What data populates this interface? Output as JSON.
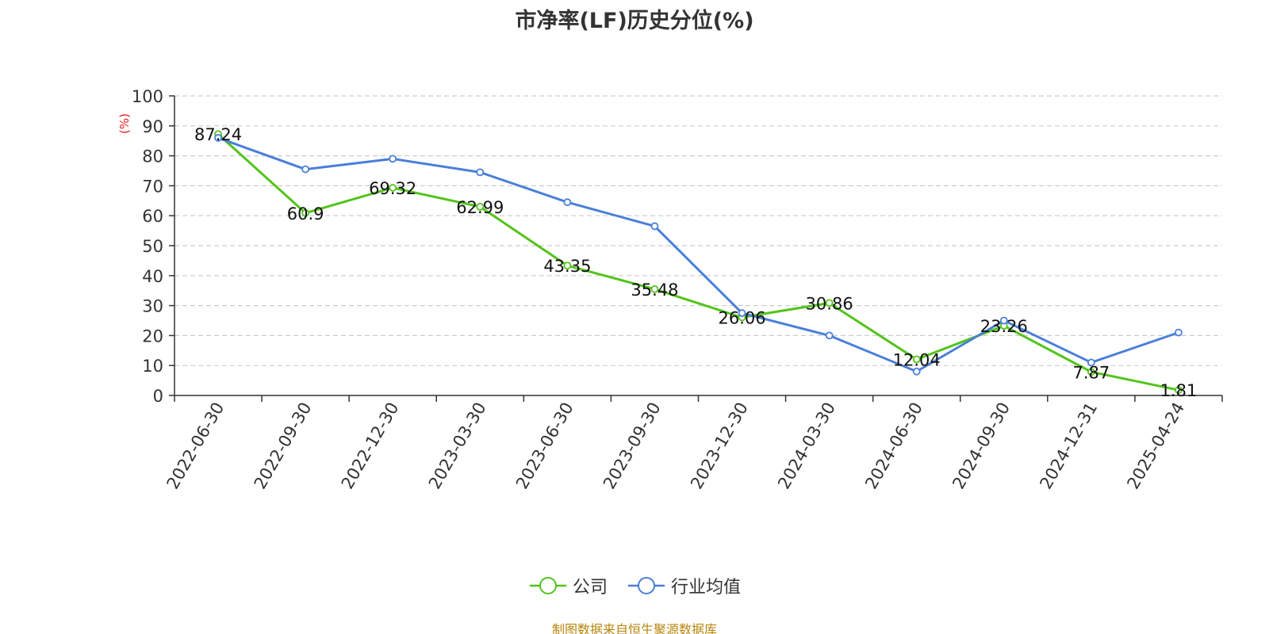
{
  "title": "市净率(LF)历史分位(%)",
  "source_note": "制图数据来自恒生聚源数据库",
  "colors": {
    "company": "#52c41a",
    "industry": "#4a7fd9",
    "grid": "#cccccc",
    "axis": "#333333",
    "unit": "#e02020"
  },
  "chart_data": {
    "type": "line",
    "title": "市净率(LF)历史分位(%)",
    "xlabel": "",
    "ylabel": "(%)",
    "ylim": [
      0,
      100
    ],
    "y_ticks": [
      0,
      10,
      20,
      30,
      40,
      50,
      60,
      70,
      80,
      90,
      100
    ],
    "grid": true,
    "legend_position": "bottom",
    "categories": [
      "2022-06-30",
      "2022-09-30",
      "2022-12-30",
      "2023-03-30",
      "2023-06-30",
      "2023-09-30",
      "2023-12-30",
      "2024-03-30",
      "2024-06-30",
      "2024-09-30",
      "2024-12-31",
      "2025-04-24"
    ],
    "series": [
      {
        "name": "公司",
        "color": "#52c41a",
        "values": [
          87.24,
          60.9,
          69.32,
          62.99,
          43.35,
          35.48,
          26.06,
          30.86,
          12.04,
          23.26,
          7.87,
          1.81
        ],
        "labels": [
          "87.24",
          "60.9",
          "69.32",
          "62.99",
          "43.35",
          "35.48",
          "26.06",
          "30.86",
          "12.04",
          "23.26",
          "7.87",
          "1.81"
        ]
      },
      {
        "name": "行业均值",
        "color": "#4a7fd9",
        "values": [
          86,
          75.5,
          79,
          74.5,
          64.5,
          56.5,
          27.5,
          20,
          8,
          25,
          11,
          21
        ]
      }
    ]
  }
}
